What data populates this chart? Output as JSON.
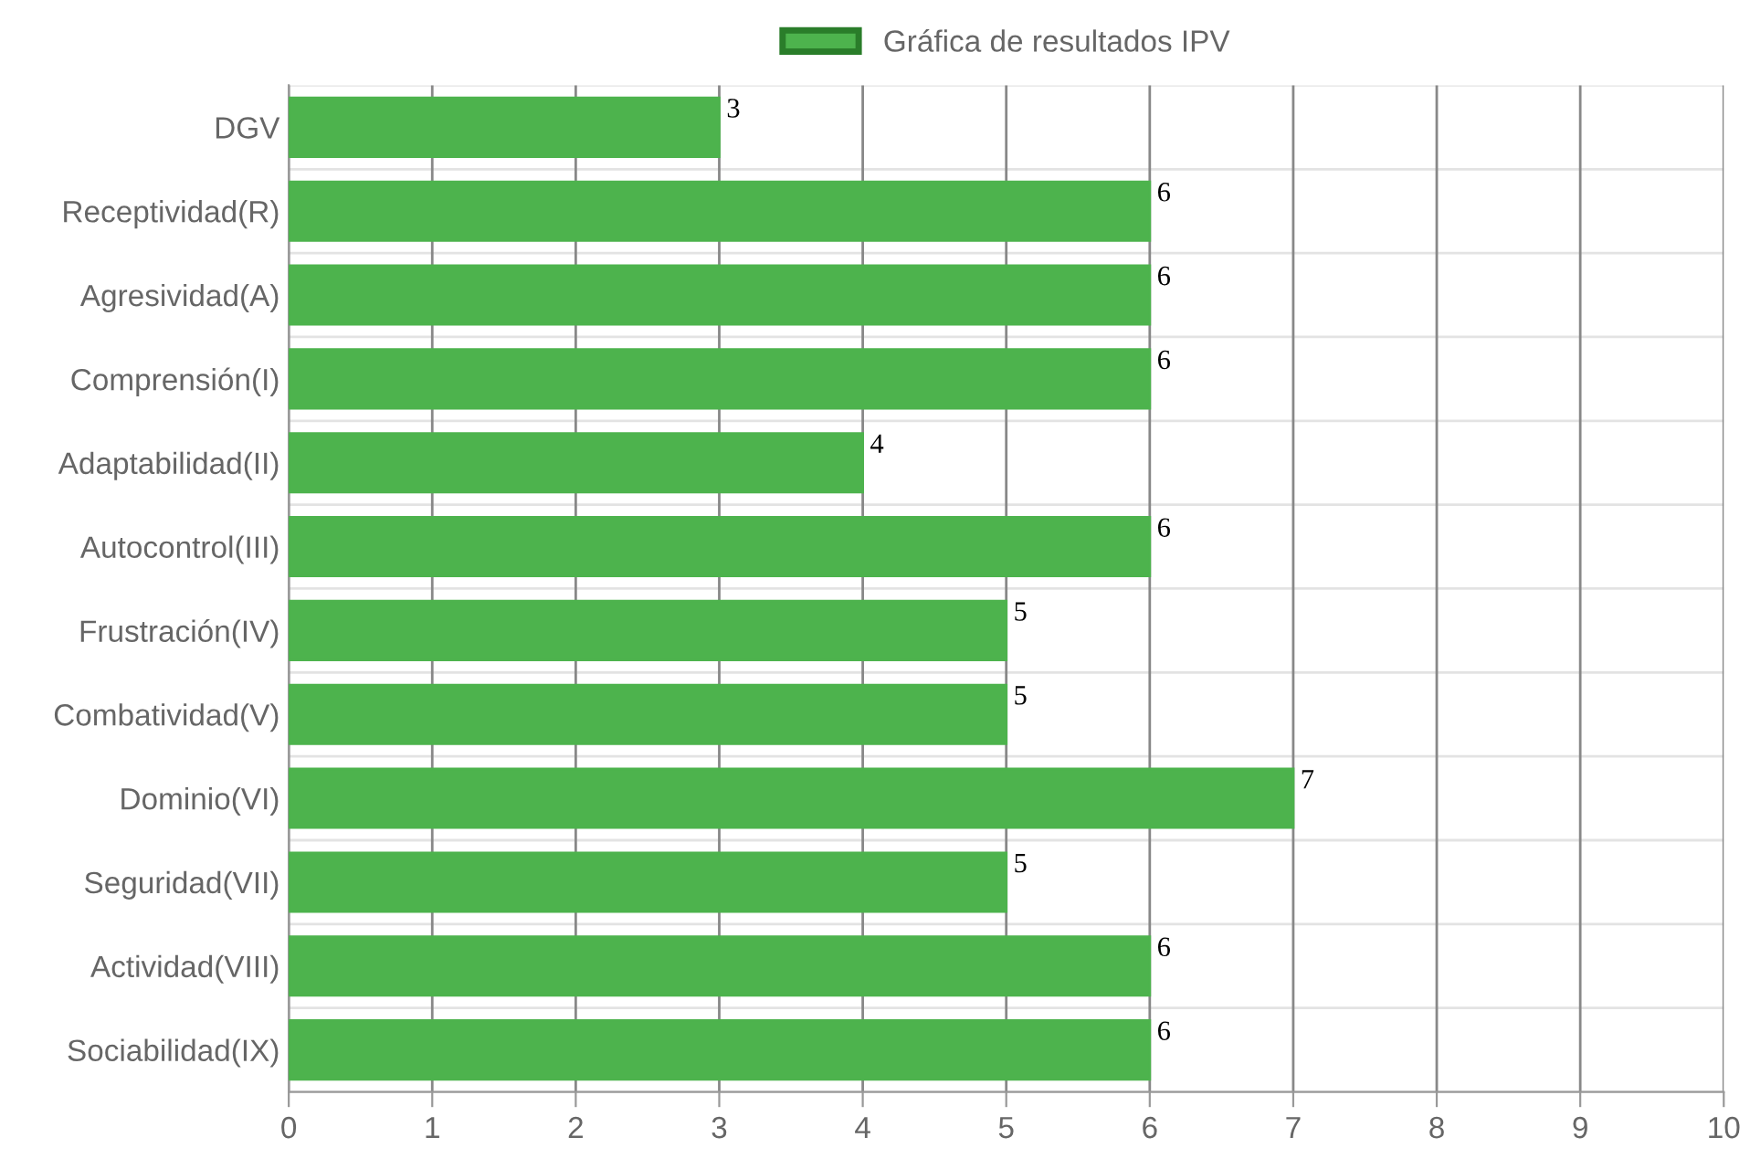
{
  "chart_data": {
    "type": "bar",
    "orientation": "horizontal",
    "categories": [
      "DGV",
      "Receptividad(R)",
      "Agresividad(A)",
      "Comprensión(I)",
      "Adaptabilidad(II)",
      "Autocontrol(III)",
      "Frustración(IV)",
      "Combatividad(V)",
      "Dominio(VI)",
      "Seguridad(VII)",
      "Actividad(VIII)",
      "Sociabilidad(IX)"
    ],
    "series": [
      {
        "name": "Gráfica de resultados IPV",
        "color": "#4db34d",
        "values": [
          3,
          6,
          6,
          6,
          4,
          6,
          5,
          5,
          7,
          5,
          6,
          6
        ]
      }
    ],
    "xlim": [
      0,
      10
    ],
    "xticks": [
      0,
      1,
      2,
      3,
      4,
      5,
      6,
      7,
      8,
      9,
      10
    ],
    "grid": true,
    "legend": "top",
    "data_labels": true
  }
}
